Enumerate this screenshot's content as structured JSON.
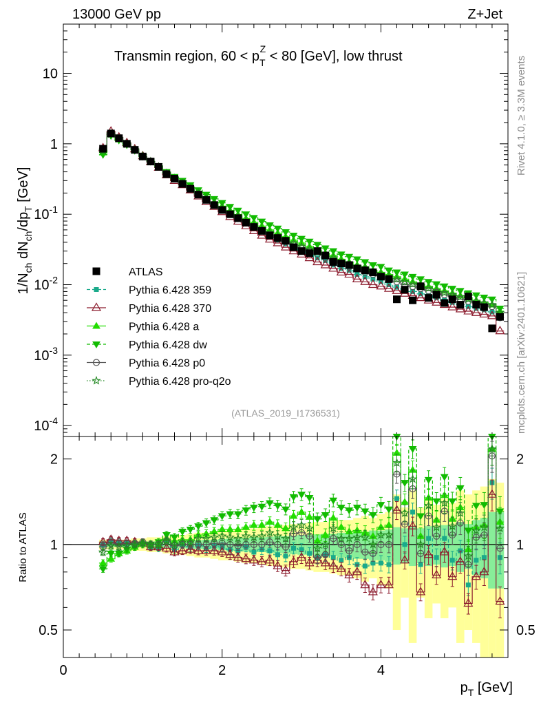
{
  "header": {
    "energy": "13000 GeV pp",
    "process": "Z+Jet",
    "plot_title": "Transmin region, 60 < p_T^Z < 80 [GeV], low thrust",
    "analysis_id": "(ATLAS_2019_I1736531)",
    "side_label_top": "Rivet 4.1.0, ≥ 3.3M events",
    "side_label_bottom": "mcplots.cern.ch [arXiv:2401.10621]"
  },
  "chart_data": [
    {
      "type": "scatter",
      "panel": "main",
      "title": "Transmin region, 60 < p_T^Z < 80 [GeV], low thrust",
      "ylabel": "1/N_ch dN_ch/dp_T [GeV]",
      "yscale": "log",
      "ylim": [
        7e-05,
        50
      ],
      "xlim": [
        0,
        5.6
      ],
      "yticks": [
        "10^-4",
        "10^-3",
        "10^-2",
        "10^-1",
        "1",
        "10"
      ],
      "legend": [
        "ATLAS",
        "Pythia 6.428 359",
        "Pythia 6.428 370",
        "Pythia 6.428 a",
        "Pythia 6.428 dw",
        "Pythia 6.428 p0",
        "Pythia 6.428 pro-q2o"
      ],
      "legend_position": "bottom-left",
      "x": [
        0.5,
        0.6,
        0.7,
        0.8,
        0.9,
        1.0,
        1.1,
        1.2,
        1.3,
        1.4,
        1.5,
        1.6,
        1.7,
        1.8,
        1.9,
        2.0,
        2.1,
        2.2,
        2.3,
        2.4,
        2.5,
        2.6,
        2.7,
        2.8,
        2.9,
        3.0,
        3.1,
        3.2,
        3.3,
        3.4,
        3.5,
        3.6,
        3.7,
        3.8,
        3.9,
        4.0,
        4.1,
        4.2,
        4.3,
        4.4,
        4.5,
        4.6,
        4.7,
        4.8,
        4.9,
        5.0,
        5.1,
        5.2,
        5.3,
        5.4,
        5.5
      ],
      "series": [
        {
          "name": "ATLAS",
          "values": [
            0.85,
            1.4,
            1.2,
            1.0,
            0.82,
            0.66,
            0.56,
            0.47,
            0.37,
            0.32,
            0.27,
            0.23,
            0.19,
            0.16,
            0.135,
            0.115,
            0.1,
            0.088,
            0.076,
            0.066,
            0.058,
            0.05,
            0.046,
            0.042,
            0.034,
            0.03,
            0.028,
            0.03,
            0.026,
            0.021,
            0.02,
            0.019,
            0.017,
            0.016,
            0.015,
            0.013,
            0.012,
            0.0062,
            0.0085,
            0.006,
            0.0095,
            0.0065,
            0.0072,
            0.0055,
            0.0062,
            0.0052,
            0.0068,
            0.0052,
            0.0048,
            0.0024,
            0.0035
          ]
        },
        {
          "name": "Pythia 6.428 359",
          "values": [
            0.85,
            1.45,
            1.22,
            1.02,
            0.83,
            0.67,
            0.56,
            0.46,
            0.38,
            0.32,
            0.27,
            0.23,
            0.19,
            0.16,
            0.135,
            0.115,
            0.098,
            0.085,
            0.074,
            0.064,
            0.056,
            0.048,
            0.043,
            0.038,
            0.034,
            0.03,
            0.027,
            0.024,
            0.022,
            0.019,
            0.017,
            0.016,
            0.014,
            0.013,
            0.012,
            0.011,
            0.01,
            0.0092,
            0.0085,
            0.008,
            0.0074,
            0.007,
            0.0065,
            0.006,
            0.0056,
            0.0052,
            0.0049,
            0.0046,
            0.0044,
            0.0041,
            0.0036
          ]
        },
        {
          "name": "Pythia 6.428 370",
          "values": [
            0.87,
            1.5,
            1.24,
            1.03,
            0.84,
            0.67,
            0.55,
            0.46,
            0.36,
            0.3,
            0.26,
            0.22,
            0.18,
            0.15,
            0.128,
            0.108,
            0.092,
            0.079,
            0.068,
            0.058,
            0.05,
            0.044,
            0.039,
            0.034,
            0.03,
            0.027,
            0.024,
            0.021,
            0.019,
            0.017,
            0.015,
            0.014,
            0.012,
            0.011,
            0.01,
            0.0095,
            0.0088,
            0.0082,
            0.0075,
            0.007,
            0.0065,
            0.006,
            0.0056,
            0.0052,
            0.0048,
            0.0045,
            0.0042,
            0.004,
            0.0038,
            0.0036,
            0.0022
          ]
        },
        {
          "name": "Pythia 6.428 a",
          "values": [
            0.75,
            1.35,
            1.15,
            0.98,
            0.82,
            0.67,
            0.56,
            0.47,
            0.39,
            0.33,
            0.28,
            0.24,
            0.205,
            0.175,
            0.15,
            0.13,
            0.113,
            0.099,
            0.087,
            0.077,
            0.068,
            0.06,
            0.054,
            0.048,
            0.043,
            0.039,
            0.035,
            0.031,
            0.028,
            0.026,
            0.023,
            0.021,
            0.019,
            0.018,
            0.016,
            0.015,
            0.014,
            0.013,
            0.012,
            0.011,
            0.0102,
            0.0095,
            0.0088,
            0.0082,
            0.0076,
            0.007,
            0.0065,
            0.006,
            0.0056,
            0.0052,
            0.0042
          ]
        },
        {
          "name": "Pythia 6.428 dw",
          "values": [
            0.7,
            1.3,
            1.12,
            0.96,
            0.8,
            0.66,
            0.56,
            0.48,
            0.4,
            0.34,
            0.3,
            0.26,
            0.22,
            0.19,
            0.165,
            0.145,
            0.128,
            0.113,
            0.1,
            0.089,
            0.079,
            0.07,
            0.063,
            0.056,
            0.05,
            0.045,
            0.041,
            0.037,
            0.033,
            0.03,
            0.027,
            0.025,
            0.023,
            0.021,
            0.019,
            0.018,
            0.016,
            0.015,
            0.014,
            0.013,
            0.012,
            0.011,
            0.0102,
            0.0095,
            0.0088,
            0.0082,
            0.0076,
            0.0071,
            0.0066,
            0.0062,
            0.0046
          ]
        },
        {
          "name": "Pythia 6.428 p0",
          "values": [
            0.83,
            1.42,
            1.21,
            1.01,
            0.83,
            0.67,
            0.56,
            0.47,
            0.38,
            0.32,
            0.27,
            0.23,
            0.19,
            0.16,
            0.136,
            0.116,
            0.1,
            0.087,
            0.076,
            0.066,
            0.058,
            0.051,
            0.046,
            0.041,
            0.037,
            0.033,
            0.03,
            0.027,
            0.024,
            0.022,
            0.02,
            0.018,
            0.017,
            0.015,
            0.014,
            0.013,
            0.012,
            0.011,
            0.01,
            0.0094,
            0.0088,
            0.0082,
            0.0077,
            0.0072,
            0.0067,
            0.0062,
            0.0058,
            0.0055,
            0.0052,
            0.0049,
            0.0034
          ]
        },
        {
          "name": "Pythia 6.428 pro-q2o",
          "values": [
            0.8,
            1.38,
            1.18,
            0.99,
            0.82,
            0.67,
            0.56,
            0.47,
            0.38,
            0.32,
            0.275,
            0.235,
            0.2,
            0.168,
            0.143,
            0.123,
            0.106,
            0.092,
            0.081,
            0.07,
            0.062,
            0.055,
            0.049,
            0.044,
            0.039,
            0.035,
            0.032,
            0.029,
            0.026,
            0.024,
            0.021,
            0.02,
            0.018,
            0.017,
            0.015,
            0.014,
            0.013,
            0.012,
            0.011,
            0.0102,
            0.0095,
            0.0089,
            0.0083,
            0.0077,
            0.0072,
            0.0067,
            0.0062,
            0.0058,
            0.0055,
            0.0052,
            0.004
          ]
        }
      ]
    },
    {
      "type": "scatter",
      "panel": "ratio",
      "ylabel": "Ratio to ATLAS",
      "xlabel": "p_T [GeV]",
      "yscale": "log",
      "ylim": [
        0.4,
        2.4
      ],
      "xlim": [
        0,
        5.6
      ],
      "xticks": [
        0,
        2,
        4
      ],
      "yticks": [
        0.5,
        1,
        2
      ],
      "reference": 1,
      "x": [
        0.5,
        0.6,
        0.7,
        0.8,
        0.9,
        1.0,
        1.1,
        1.2,
        1.3,
        1.4,
        1.5,
        1.6,
        1.7,
        1.8,
        1.9,
        2.0,
        2.1,
        2.2,
        2.3,
        2.4,
        2.5,
        2.6,
        2.7,
        2.8,
        2.9,
        3.0,
        3.1,
        3.2,
        3.3,
        3.4,
        3.5,
        3.6,
        3.7,
        3.8,
        3.9,
        4.0,
        4.1,
        4.2,
        4.3,
        4.4,
        4.5,
        4.6,
        4.7,
        4.8,
        4.9,
        5.0,
        5.1,
        5.2,
        5.3,
        5.4,
        5.5
      ],
      "band_inner": [
        0.02,
        0.02,
        0.02,
        0.02,
        0.02,
        0.02,
        0.025,
        0.025,
        0.03,
        0.03,
        0.03,
        0.035,
        0.035,
        0.04,
        0.04,
        0.045,
        0.05,
        0.05,
        0.055,
        0.06,
        0.06,
        0.065,
        0.07,
        0.07,
        0.075,
        0.08,
        0.08,
        0.085,
        0.09,
        0.09,
        0.1,
        0.1,
        0.11,
        0.11,
        0.12,
        0.12,
        0.13,
        0.15,
        0.14,
        0.16,
        0.14,
        0.16,
        0.15,
        0.17,
        0.16,
        0.2,
        0.18,
        0.22,
        0.24,
        0.3,
        0.3
      ],
      "band_outer": [
        0.04,
        0.04,
        0.04,
        0.04,
        0.05,
        0.05,
        0.06,
        0.06,
        0.07,
        0.08,
        0.08,
        0.09,
        0.1,
        0.1,
        0.11,
        0.12,
        0.12,
        0.13,
        0.14,
        0.14,
        0.15,
        0.16,
        0.16,
        0.17,
        0.18,
        0.18,
        0.19,
        0.2,
        0.2,
        0.21,
        0.22,
        0.22,
        0.24,
        0.26,
        0.24,
        0.28,
        0.3,
        0.5,
        0.35,
        0.55,
        0.35,
        0.45,
        0.38,
        0.45,
        0.4,
        0.55,
        0.5,
        0.55,
        0.6,
        0.7,
        0.65
      ],
      "series": [
        {
          "name": "Pythia 6.428 359",
          "values": [
            1.0,
            1.03,
            1.02,
            1.01,
            1.01,
            1.01,
            0.98,
            0.97,
            1.03,
            0.96,
            1.0,
            0.98,
            0.99,
            0.97,
            0.99,
            0.98,
            0.96,
            0.95,
            0.98,
            0.94,
            0.96,
            0.95,
            0.92,
            0.91,
            0.97,
            0.96,
            0.93,
            0.9,
            0.92,
            0.9,
            0.88,
            0.9,
            0.85,
            0.84,
            0.86,
            0.86,
            0.85,
            1.45,
            1.0,
            1.3,
            0.85,
            1.05,
            0.9,
            1.05,
            0.88,
            0.95,
            0.72,
            0.88,
            0.9,
            1.65,
            0.9
          ]
        },
        {
          "name": "Pythia 6.428 370",
          "values": [
            1.02,
            1.04,
            1.03,
            1.03,
            1.02,
            1.01,
            0.98,
            0.98,
            0.97,
            0.94,
            0.95,
            0.96,
            0.95,
            0.95,
            0.95,
            0.94,
            0.92,
            0.9,
            0.89,
            0.88,
            0.87,
            0.88,
            0.84,
            0.81,
            0.87,
            0.9,
            0.86,
            0.88,
            0.86,
            0.84,
            0.82,
            0.78,
            0.8,
            0.72,
            0.68,
            0.72,
            0.72,
            1.32,
            0.88,
            1.16,
            0.68,
            0.92,
            0.78,
            0.94,
            0.77,
            0.87,
            0.62,
            0.77,
            0.8,
            1.5,
            0.63
          ]
        },
        {
          "name": "Pythia 6.428 a",
          "values": [
            0.86,
            0.89,
            0.93,
            0.95,
            0.98,
            1.01,
            1.0,
            1.0,
            1.05,
            1.03,
            1.04,
            1.04,
            1.08,
            1.09,
            1.11,
            1.13,
            1.13,
            1.13,
            1.15,
            1.17,
            1.17,
            1.2,
            1.17,
            1.14,
            1.26,
            1.3,
            1.25,
            1.03,
            1.08,
            1.24,
            1.15,
            1.11,
            1.12,
            1.1,
            1.07,
            1.15,
            1.17,
            2.1,
            1.41,
            1.83,
            1.07,
            1.46,
            1.22,
            1.49,
            1.23,
            1.35,
            0.96,
            1.15,
            1.17,
            2.17,
            1.2
          ]
        },
        {
          "name": "Pythia 6.428 dw",
          "values": [
            0.82,
            0.93,
            0.93,
            0.96,
            0.98,
            1.0,
            1.0,
            1.02,
            1.08,
            1.06,
            1.11,
            1.13,
            1.16,
            1.19,
            1.22,
            1.26,
            1.28,
            1.28,
            1.32,
            1.35,
            1.36,
            1.4,
            1.37,
            1.33,
            1.47,
            1.5,
            1.46,
            1.23,
            1.27,
            1.43,
            1.35,
            1.32,
            1.35,
            1.31,
            1.27,
            1.38,
            1.33,
            2.42,
            1.65,
            2.17,
            1.26,
            1.69,
            1.42,
            1.73,
            1.42,
            1.58,
            1.12,
            1.37,
            1.38,
            2.58,
            1.31
          ]
        },
        {
          "name": "Pythia 6.428 p0",
          "values": [
            0.98,
            1.01,
            1.01,
            1.01,
            1.01,
            1.02,
            1.0,
            1.0,
            1.03,
            0.99,
            1.0,
            1.0,
            1.0,
            1.0,
            1.01,
            1.01,
            1.0,
            0.99,
            1.0,
            1.0,
            1.0,
            1.02,
            1.0,
            0.98,
            1.09,
            1.1,
            1.07,
            0.9,
            0.92,
            1.05,
            1.0,
            0.95,
            1.0,
            0.94,
            0.93,
            1.0,
            1.0,
            1.77,
            1.18,
            1.57,
            0.93,
            1.26,
            1.07,
            1.31,
            1.08,
            1.19,
            0.85,
            1.06,
            1.08,
            2.05,
            0.97
          ]
        },
        {
          "name": "Pythia 6.428 pro-q2o",
          "values": [
            0.94,
            0.99,
            0.98,
            0.99,
            1.0,
            1.01,
            1.0,
            1.0,
            1.03,
            1.0,
            1.02,
            1.02,
            1.05,
            1.05,
            1.06,
            1.07,
            1.06,
            1.05,
            1.07,
            1.06,
            1.07,
            1.1,
            1.07,
            1.05,
            1.15,
            1.17,
            1.14,
            0.97,
            1.0,
            1.14,
            1.05,
            1.05,
            1.06,
            1.06,
            1.0,
            1.08,
            1.08,
            1.94,
            1.29,
            1.7,
            1.0,
            1.37,
            1.15,
            1.4,
            1.16,
            1.29,
            0.91,
            1.12,
            1.15,
            2.17,
            1.14
          ]
        }
      ]
    }
  ],
  "colors": {
    "ATLAS": "#000000",
    "Pythia 6.428 359": "#1aaa8a",
    "Pythia 6.428 370": "#8b1a2c",
    "Pythia 6.428 a": "#22dd00",
    "Pythia 6.428 dw": "#11bb00",
    "Pythia 6.428 p0": "#555555",
    "Pythia 6.428 pro-q2o": "#228822",
    "band_inner": "#88ee99",
    "band_outer": "#ffff99"
  }
}
